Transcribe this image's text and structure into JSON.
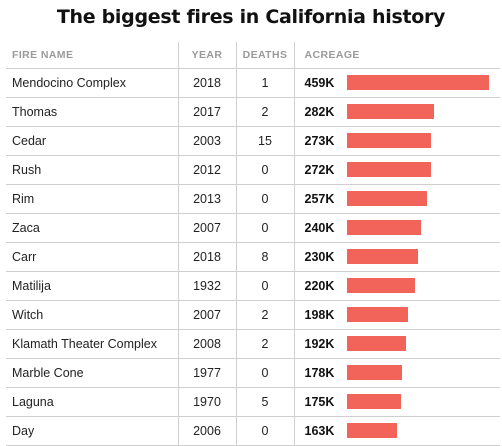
{
  "title": "The biggest fires in California history",
  "columns": {
    "name": "FIRE NAME",
    "year": "YEAR",
    "deaths": "DEATHS",
    "acreage": "ACREAGE"
  },
  "colors": {
    "bar": "#f26459",
    "header_text": "#9a9a9a",
    "rule": "#cfcfcf"
  },
  "chart_data": {
    "type": "table",
    "title": "The biggest fires in California history",
    "columns": [
      "FIRE NAME",
      "YEAR",
      "DEATHS",
      "ACREAGE"
    ],
    "acreage_max": 459,
    "rows": [
      {
        "name": "Mendocino Complex",
        "year": "2018",
        "deaths": "1",
        "acreage_label": "459K",
        "acreage": 459
      },
      {
        "name": "Thomas",
        "year": "2017",
        "deaths": "2",
        "acreage_label": "282K",
        "acreage": 282
      },
      {
        "name": "Cedar",
        "year": "2003",
        "deaths": "15",
        "acreage_label": "273K",
        "acreage": 273
      },
      {
        "name": "Rush",
        "year": "2012",
        "deaths": "0",
        "acreage_label": "272K",
        "acreage": 272
      },
      {
        "name": "Rim",
        "year": "2013",
        "deaths": "0",
        "acreage_label": "257K",
        "acreage": 257
      },
      {
        "name": "Zaca",
        "year": "2007",
        "deaths": "0",
        "acreage_label": "240K",
        "acreage": 240
      },
      {
        "name": "Carr",
        "year": "2018",
        "deaths": "8",
        "acreage_label": "230K",
        "acreage": 230
      },
      {
        "name": "Matilija",
        "year": "1932",
        "deaths": "0",
        "acreage_label": "220K",
        "acreage": 220
      },
      {
        "name": "Witch",
        "year": "2007",
        "deaths": "2",
        "acreage_label": "198K",
        "acreage": 198
      },
      {
        "name": "Klamath Theater Complex",
        "year": "2008",
        "deaths": "2",
        "acreage_label": "192K",
        "acreage": 192
      },
      {
        "name": "Marble Cone",
        "year": "1977",
        "deaths": "0",
        "acreage_label": "178K",
        "acreage": 178
      },
      {
        "name": "Laguna",
        "year": "1970",
        "deaths": "5",
        "acreage_label": "175K",
        "acreage": 175
      },
      {
        "name": "Day",
        "year": "2006",
        "deaths": "0",
        "acreage_label": "163K",
        "acreage": 163
      }
    ]
  }
}
